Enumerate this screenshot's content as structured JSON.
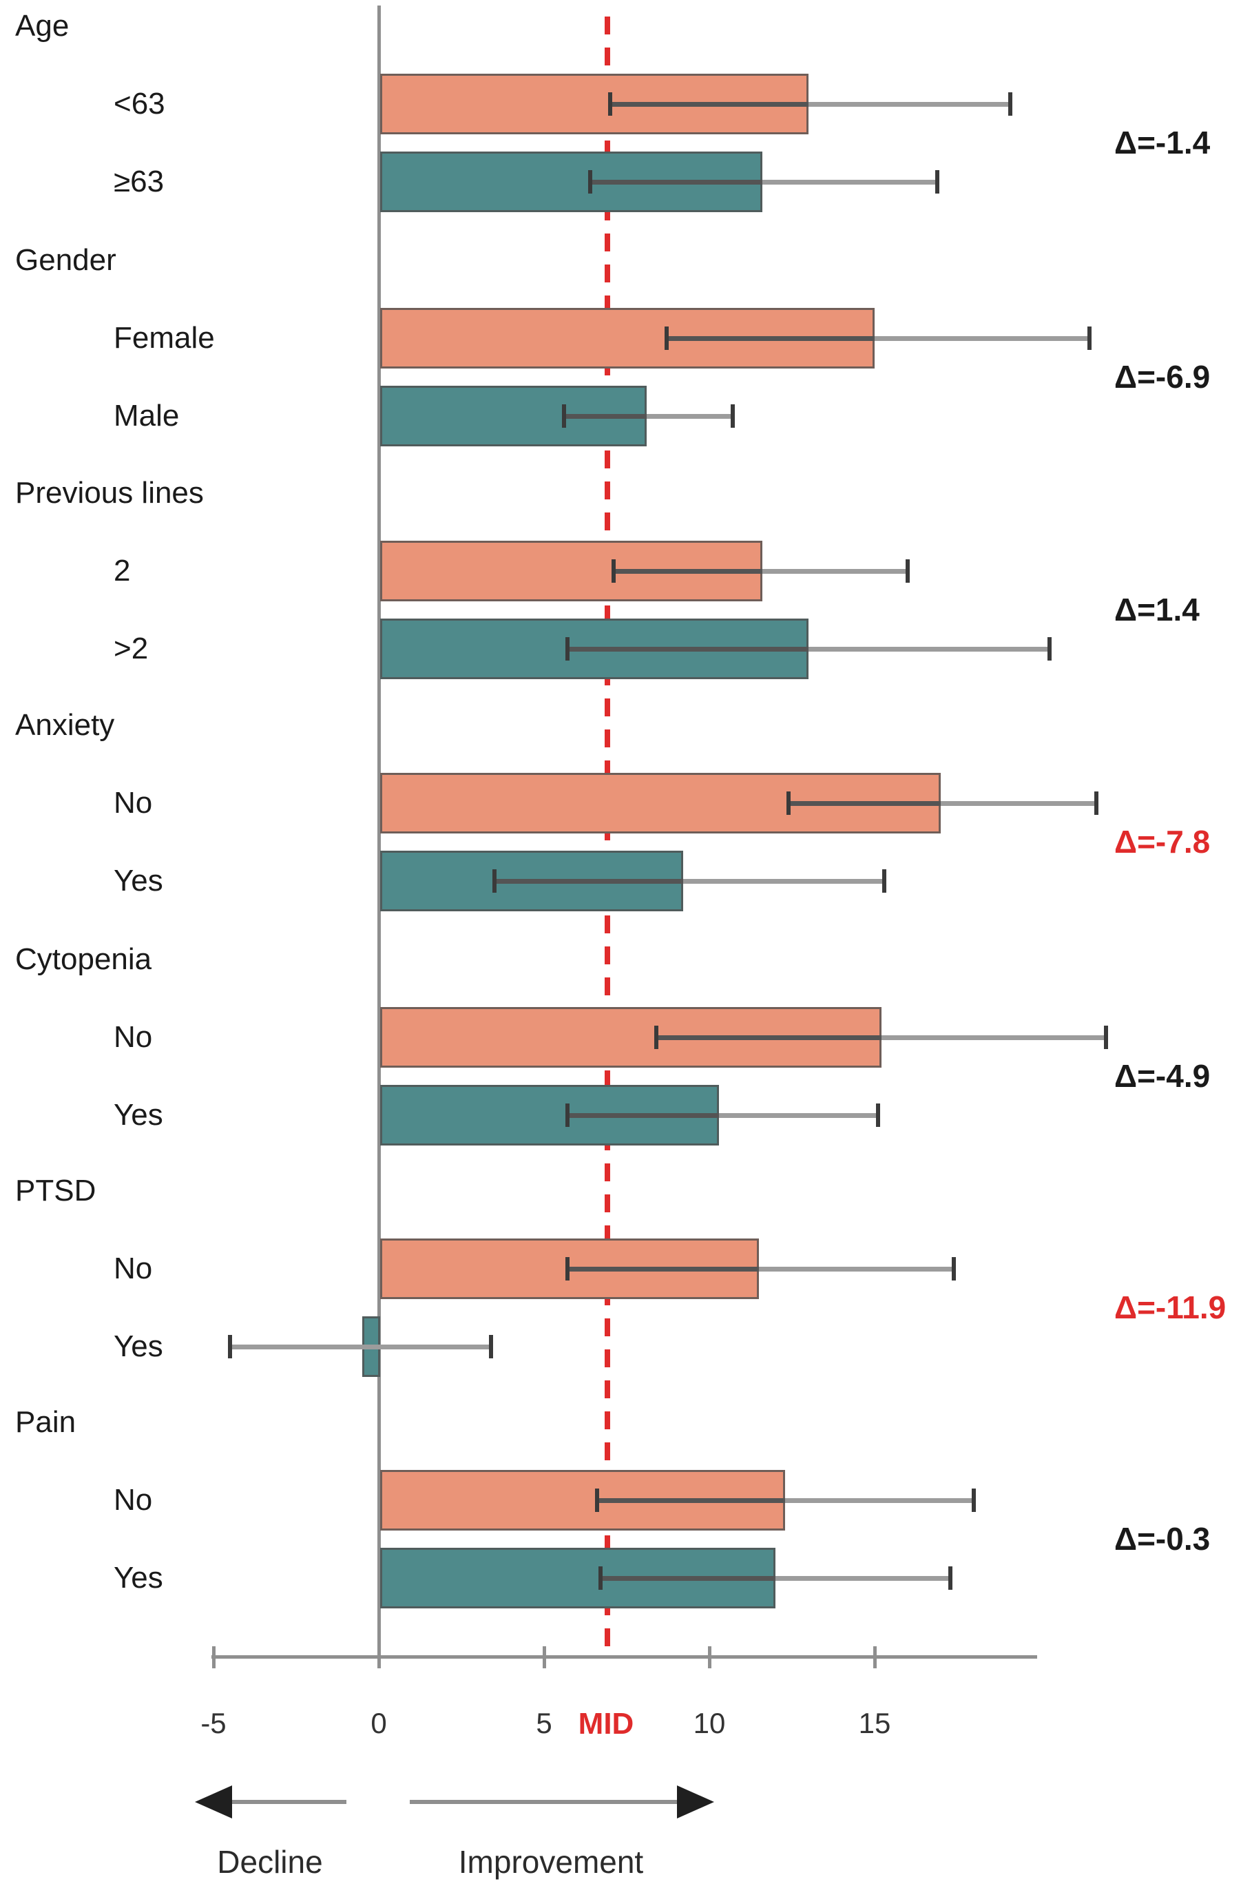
{
  "chart_data": {
    "type": "bar",
    "orientation": "horizontal",
    "title": "",
    "xlabel": "",
    "x_ticks": [
      -5,
      0,
      5,
      10,
      15
    ],
    "xlim": [
      -7,
      20.5
    ],
    "grid": false,
    "legend": "none",
    "mid_line": {
      "value": 7,
      "label": "MID"
    },
    "direction_labels": {
      "left": "Decline",
      "right": "Improvement"
    },
    "groups": [
      {
        "label": "Age",
        "rows": [
          {
            "label": "<63",
            "value": 13.0,
            "ci": [
              7.0,
              19.1
            ],
            "color_key": "orange"
          },
          {
            "label": "≥63",
            "value": 11.6,
            "ci": [
              6.4,
              16.9
            ],
            "color_key": "teal"
          }
        ],
        "delta": {
          "label": "Δ=-1.4",
          "value": -1.4,
          "highlight": false
        }
      },
      {
        "label": "Gender",
        "rows": [
          {
            "label": "Female",
            "value": 15.0,
            "ci": [
              8.7,
              21.5
            ],
            "color_key": "orange"
          },
          {
            "label": "Male",
            "value": 8.1,
            "ci": [
              5.6,
              10.7
            ],
            "color_key": "teal"
          }
        ],
        "delta": {
          "label": "Δ=-6.9",
          "value": -6.9,
          "highlight": false
        }
      },
      {
        "label": "Previous lines",
        "rows": [
          {
            "label": "2",
            "value": 11.6,
            "ci": [
              7.1,
              16.0
            ],
            "color_key": "orange"
          },
          {
            "label": ">2",
            "value": 13.0,
            "ci": [
              5.7,
              20.3
            ],
            "color_key": "teal"
          }
        ],
        "delta": {
          "label": "Δ=1.4",
          "value": 1.4,
          "highlight": false
        }
      },
      {
        "label": "Anxiety",
        "rows": [
          {
            "label": "No",
            "value": 17.0,
            "ci": [
              12.4,
              21.7
            ],
            "color_key": "orange"
          },
          {
            "label": "Yes",
            "value": 9.2,
            "ci": [
              3.5,
              15.3
            ],
            "color_key": "teal"
          }
        ],
        "delta": {
          "label": "Δ=-7.8",
          "value": -7.8,
          "highlight": true
        }
      },
      {
        "label": "Cytopenia",
        "rows": [
          {
            "label": "No",
            "value": 15.2,
            "ci": [
              8.4,
              22.0
            ],
            "color_key": "orange"
          },
          {
            "label": "Yes",
            "value": 10.3,
            "ci": [
              5.7,
              15.1
            ],
            "color_key": "teal"
          }
        ],
        "delta": {
          "label": "Δ=-4.9",
          "value": -4.9,
          "highlight": false
        }
      },
      {
        "label": "PTSD",
        "rows": [
          {
            "label": "No",
            "value": 11.5,
            "ci": [
              5.7,
              17.4
            ],
            "color_key": "orange"
          },
          {
            "label": "Yes",
            "value": -0.5,
            "ci": [
              -4.5,
              3.4
            ],
            "color_key": "teal"
          }
        ],
        "delta": {
          "label": "Δ=-11.9",
          "value": -11.9,
          "highlight": true
        }
      },
      {
        "label": "Pain",
        "rows": [
          {
            "label": "No",
            "value": 12.3,
            "ci": [
              6.6,
              18.0
            ],
            "color_key": "orange"
          },
          {
            "label": "Yes",
            "value": 12.0,
            "ci": [
              6.7,
              17.3
            ],
            "color_key": "teal"
          }
        ],
        "delta": {
          "label": "Δ=-0.3",
          "value": -0.3,
          "highlight": false
        }
      }
    ],
    "colors": {
      "orange": "#EA9478",
      "teal": "#4F8A8B",
      "highlight_red": "#E02B2B",
      "axis_gray": "#8F8F8F",
      "error_line": "#9C9C9C",
      "error_cap": "#3A3A3A",
      "text": "#1A1A1A",
      "arrow_head": "#1F1F1F"
    }
  }
}
